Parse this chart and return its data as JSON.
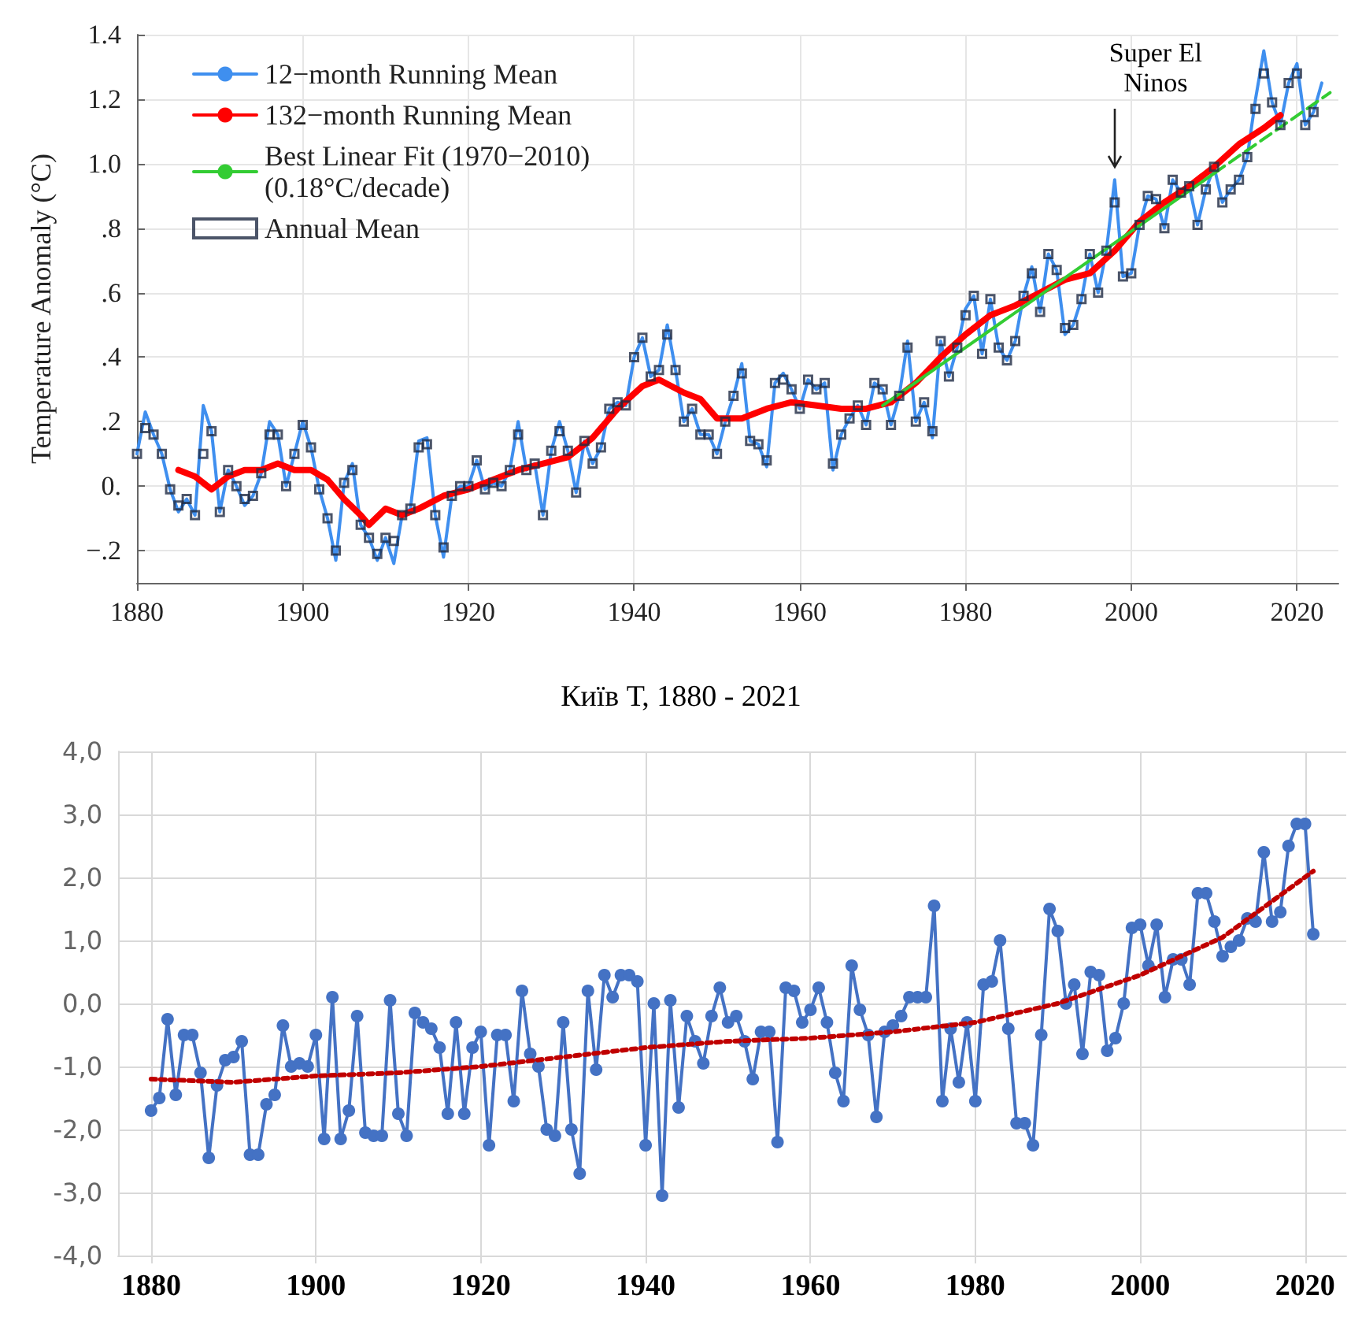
{
  "chart_data": [
    {
      "type": "line",
      "ylabel": "Temperature Anomaly (°C)",
      "xlim": [
        1880,
        2025
      ],
      "xticks": [
        1880,
        1900,
        1920,
        1940,
        1960,
        1980,
        2000,
        2020
      ],
      "ylim": [
        -0.3,
        1.4
      ],
      "yticks": [
        {
          "value": -0.2,
          "label": "−.2"
        },
        {
          "value": 0,
          "label": "0."
        },
        {
          "value": 0.2,
          "label": ".2"
        },
        {
          "value": 0.4,
          "label": ".4"
        },
        {
          "value": 0.6,
          "label": ".6"
        },
        {
          "value": 0.8,
          "label": ".8"
        },
        {
          "value": 1.0,
          "label": "1.0"
        },
        1.2,
        1.4
      ],
      "grid": true,
      "legend": "top left",
      "annotations": [
        {
          "text": "Super El Ninos",
          "x": 1998,
          "y": 0.95
        }
      ],
      "series": [
        {
          "name": "12−month Running Mean",
          "type": "line",
          "color": "#3f8fef",
          "marker": "none",
          "line_style": "solid",
          "x": [
            1880,
            1881,
            1882,
            1883,
            1884,
            1885,
            1886,
            1887,
            1888,
            1889,
            1890,
            1891,
            1892,
            1893,
            1894,
            1895,
            1896,
            1897,
            1898,
            1899,
            1900,
            1901,
            1902,
            1903,
            1904,
            1905,
            1906,
            1907,
            1908,
            1909,
            1910,
            1911,
            1912,
            1913,
            1914,
            1915,
            1916,
            1917,
            1918,
            1919,
            1920,
            1921,
            1922,
            1923,
            1924,
            1925,
            1926,
            1927,
            1928,
            1929,
            1930,
            1931,
            1932,
            1933,
            1934,
            1935,
            1936,
            1937,
            1938,
            1939,
            1940,
            1941,
            1942,
            1943,
            1944,
            1945,
            1946,
            1947,
            1948,
            1949,
            1950,
            1951,
            1952,
            1953,
            1954,
            1955,
            1956,
            1957,
            1958,
            1959,
            1960,
            1961,
            1962,
            1963,
            1964,
            1965,
            1966,
            1967,
            1968,
            1969,
            1970,
            1971,
            1972,
            1973,
            1974,
            1975,
            1976,
            1977,
            1978,
            1979,
            1980,
            1981,
            1982,
            1983,
            1984,
            1985,
            1986,
            1987,
            1988,
            1989,
            1990,
            1991,
            1992,
            1993,
            1994,
            1995,
            1996,
            1997,
            1998,
            1999,
            2000,
            2001,
            2002,
            2003,
            2004,
            2005,
            2006,
            2007,
            2008,
            2009,
            2010,
            2011,
            2012,
            2013,
            2014,
            2015,
            2016,
            2017,
            2018,
            2019,
            2020,
            2021,
            2022,
            2023
          ],
          "values": [
            0.1,
            0.23,
            0.16,
            0.1,
            -0.01,
            -0.08,
            -0.04,
            -0.09,
            0.25,
            0.17,
            -0.08,
            0.05,
            0.0,
            -0.06,
            -0.03,
            0.04,
            0.2,
            0.16,
            0.0,
            0.1,
            0.2,
            0.12,
            -0.01,
            -0.1,
            -0.23,
            0.01,
            0.07,
            -0.12,
            -0.16,
            -0.23,
            -0.16,
            -0.24,
            -0.09,
            -0.07,
            0.14,
            0.15,
            -0.09,
            -0.22,
            -0.03,
            0.0,
            0.0,
            0.08,
            -0.01,
            0.01,
            0.0,
            0.05,
            0.2,
            0.05,
            0.07,
            -0.09,
            0.11,
            0.2,
            0.11,
            -0.02,
            0.14,
            0.07,
            0.12,
            0.24,
            0.26,
            0.25,
            0.4,
            0.46,
            0.34,
            0.36,
            0.5,
            0.36,
            0.2,
            0.24,
            0.16,
            0.16,
            0.1,
            0.2,
            0.28,
            0.38,
            0.14,
            0.13,
            0.06,
            0.32,
            0.35,
            0.3,
            0.24,
            0.33,
            0.3,
            0.32,
            0.05,
            0.16,
            0.21,
            0.25,
            0.19,
            0.32,
            0.3,
            0.19,
            0.28,
            0.45,
            0.2,
            0.26,
            0.15,
            0.45,
            0.34,
            0.43,
            0.55,
            0.59,
            0.41,
            0.58,
            0.43,
            0.39,
            0.45,
            0.59,
            0.68,
            0.54,
            0.72,
            0.67,
            0.47,
            0.5,
            0.58,
            0.72,
            0.6,
            0.73,
            0.95,
            0.65,
            0.66,
            0.81,
            0.9,
            0.89,
            0.8,
            0.95,
            0.91,
            0.93,
            0.81,
            0.92,
            0.99,
            0.88,
            0.92,
            0.95,
            1.02,
            1.2,
            1.35,
            1.19,
            1.12,
            1.25,
            1.31,
            1.12,
            1.16,
            1.25
          ]
        },
        {
          "name": "132−month Running Mean",
          "type": "line",
          "color": "#ff0000",
          "marker": "none",
          "line_style": "solid",
          "x": [
            1885,
            1887,
            1889,
            1891,
            1893,
            1895,
            1897,
            1899,
            1901,
            1903,
            1905,
            1907,
            1908,
            1910,
            1912,
            1914,
            1917,
            1920,
            1923,
            1926,
            1929,
            1932,
            1935,
            1938,
            1941,
            1943,
            1946,
            1948,
            1950,
            1953,
            1956,
            1959,
            1962,
            1965,
            1968,
            1971,
            1974,
            1977,
            1980,
            1983,
            1986,
            1989,
            1992,
            1995,
            1998,
            2001,
            2004,
            2007,
            2010,
            2013,
            2016,
            2018
          ],
          "values": [
            0.05,
            0.03,
            -0.01,
            0.03,
            0.05,
            0.05,
            0.07,
            0.05,
            0.05,
            0.02,
            -0.04,
            -0.09,
            -0.12,
            -0.07,
            -0.09,
            -0.07,
            -0.03,
            -0.01,
            0.02,
            0.05,
            0.07,
            0.09,
            0.15,
            0.24,
            0.31,
            0.33,
            0.29,
            0.27,
            0.21,
            0.21,
            0.24,
            0.26,
            0.25,
            0.24,
            0.24,
            0.26,
            0.32,
            0.4,
            0.47,
            0.53,
            0.56,
            0.6,
            0.64,
            0.66,
            0.73,
            0.82,
            0.88,
            0.93,
            0.99,
            1.06,
            1.11,
            1.15
          ]
        },
        {
          "name": "Best Linear Fit (1970−2010) (0.18°C/decade)",
          "type": "line",
          "color": "#33cc33",
          "marker": "none",
          "line_style": "solid",
          "x": [
            1970,
            2010
          ],
          "values": [
            0.25,
            0.97
          ]
        },
        {
          "type": "line",
          "color": "#33cc33",
          "marker": "none",
          "line_style": "dashed",
          "x": [
            2010,
            2024
          ],
          "values": [
            0.97,
            1.22
          ]
        },
        {
          "name": "Annual Mean",
          "type": "scatter",
          "color": "#1f2a44",
          "marker": "square",
          "x": [
            1880,
            1881,
            1882,
            1883,
            1884,
            1885,
            1886,
            1887,
            1888,
            1889,
            1890,
            1891,
            1892,
            1893,
            1894,
            1895,
            1896,
            1897,
            1898,
            1899,
            1900,
            1901,
            1902,
            1903,
            1904,
            1905,
            1906,
            1907,
            1908,
            1909,
            1910,
            1911,
            1912,
            1913,
            1914,
            1915,
            1916,
            1917,
            1918,
            1919,
            1920,
            1921,
            1922,
            1923,
            1924,
            1925,
            1926,
            1927,
            1928,
            1929,
            1930,
            1931,
            1932,
            1933,
            1934,
            1935,
            1936,
            1937,
            1938,
            1939,
            1940,
            1941,
            1942,
            1943,
            1944,
            1945,
            1946,
            1947,
            1948,
            1949,
            1950,
            1951,
            1952,
            1953,
            1954,
            1955,
            1956,
            1957,
            1958,
            1959,
            1960,
            1961,
            1962,
            1963,
            1964,
            1965,
            1966,
            1967,
            1968,
            1969,
            1970,
            1971,
            1972,
            1973,
            1974,
            1975,
            1976,
            1977,
            1978,
            1979,
            1980,
            1981,
            1982,
            1983,
            1984,
            1985,
            1986,
            1987,
            1988,
            1989,
            1990,
            1991,
            1992,
            1993,
            1994,
            1995,
            1996,
            1997,
            1998,
            1999,
            2000,
            2001,
            2002,
            2003,
            2004,
            2005,
            2006,
            2007,
            2008,
            2009,
            2010,
            2011,
            2012,
            2013,
            2014,
            2015,
            2016,
            2017,
            2018,
            2019,
            2020,
            2021,
            2022
          ],
          "values": [
            0.1,
            0.18,
            0.16,
            0.1,
            -0.01,
            -0.06,
            -0.04,
            -0.09,
            0.1,
            0.17,
            -0.08,
            0.05,
            0.0,
            -0.04,
            -0.03,
            0.04,
            0.16,
            0.16,
            0.0,
            0.1,
            0.19,
            0.12,
            -0.01,
            -0.1,
            -0.2,
            0.01,
            0.05,
            -0.12,
            -0.16,
            -0.21,
            -0.16,
            -0.17,
            -0.09,
            -0.07,
            0.12,
            0.13,
            -0.09,
            -0.19,
            -0.03,
            0.0,
            0.0,
            0.08,
            -0.01,
            0.01,
            0.0,
            0.05,
            0.16,
            0.05,
            0.07,
            -0.09,
            0.11,
            0.17,
            0.11,
            -0.02,
            0.14,
            0.07,
            0.12,
            0.24,
            0.26,
            0.25,
            0.4,
            0.46,
            0.34,
            0.36,
            0.47,
            0.36,
            0.2,
            0.24,
            0.16,
            0.16,
            0.1,
            0.2,
            0.28,
            0.35,
            0.14,
            0.13,
            0.08,
            0.32,
            0.33,
            0.3,
            0.24,
            0.33,
            0.3,
            0.32,
            0.07,
            0.16,
            0.21,
            0.25,
            0.19,
            0.32,
            0.3,
            0.19,
            0.28,
            0.43,
            0.2,
            0.26,
            0.17,
            0.45,
            0.34,
            0.43,
            0.53,
            0.59,
            0.41,
            0.58,
            0.43,
            0.39,
            0.45,
            0.59,
            0.66,
            0.54,
            0.72,
            0.67,
            0.49,
            0.5,
            0.58,
            0.72,
            0.6,
            0.73,
            0.88,
            0.65,
            0.66,
            0.81,
            0.9,
            0.89,
            0.8,
            0.95,
            0.91,
            0.93,
            0.81,
            0.92,
            0.99,
            0.88,
            0.92,
            0.95,
            1.02,
            1.17,
            1.28,
            1.19,
            1.12,
            1.25,
            1.28,
            1.12,
            1.16
          ]
        }
      ]
    },
    {
      "type": "line",
      "title": "Київ Т, 1880 - 2021",
      "xlim": [
        1876,
        2025
      ],
      "xticks": [
        1880,
        1900,
        1920,
        1940,
        1960,
        1980,
        2000,
        2020
      ],
      "ylim": [
        -4,
        4
      ],
      "yticks": [
        {
          "value": -4,
          "label": "-4,0"
        },
        {
          "value": -3,
          "label": "-3,0"
        },
        {
          "value": -2,
          "label": "-2,0"
        },
        {
          "value": -1,
          "label": "-1,0"
        },
        {
          "value": 0,
          "label": "0,0"
        },
        {
          "value": 1,
          "label": "1,0"
        },
        {
          "value": 2,
          "label": "2,0"
        },
        {
          "value": 3,
          "label": "3,0"
        },
        {
          "value": 4,
          "label": "4,0"
        }
      ],
      "grid": true,
      "series": [
        {
          "type": "line",
          "color": "#4472c4",
          "marker": "circle",
          "line_style": "solid",
          "x": [
            1880,
            1881,
            1882,
            1883,
            1884,
            1885,
            1886,
            1887,
            1888,
            1889,
            1890,
            1891,
            1892,
            1893,
            1894,
            1895,
            1896,
            1897,
            1898,
            1899,
            1900,
            1901,
            1902,
            1903,
            1904,
            1905,
            1906,
            1907,
            1908,
            1909,
            1910,
            1911,
            1912,
            1913,
            1914,
            1915,
            1916,
            1917,
            1918,
            1919,
            1920,
            1921,
            1922,
            1923,
            1924,
            1925,
            1926,
            1927,
            1928,
            1929,
            1930,
            1931,
            1932,
            1933,
            1934,
            1935,
            1936,
            1937,
            1938,
            1939,
            1940,
            1941,
            1942,
            1943,
            1944,
            1945,
            1946,
            1947,
            1948,
            1949,
            1950,
            1951,
            1952,
            1953,
            1954,
            1955,
            1956,
            1957,
            1958,
            1959,
            1960,
            1961,
            1962,
            1963,
            1964,
            1965,
            1966,
            1967,
            1968,
            1969,
            1970,
            1971,
            1972,
            1973,
            1974,
            1975,
            1976,
            1977,
            1978,
            1979,
            1980,
            1981,
            1982,
            1983,
            1984,
            1985,
            1986,
            1987,
            1988,
            1989,
            1990,
            1991,
            1992,
            1993,
            1994,
            1995,
            1996,
            1997,
            1998,
            1999,
            2000,
            2001,
            2002,
            2003,
            2004,
            2005,
            2006,
            2007,
            2008,
            2009,
            2010,
            2011,
            2012,
            2013,
            2014,
            2015,
            2016,
            2017,
            2018,
            2019,
            2020,
            2021
          ],
          "values": [
            -1.7,
            -1.5,
            -0.25,
            -1.45,
            -0.5,
            -0.5,
            -1.1,
            -2.45,
            -1.3,
            -0.9,
            -0.85,
            -0.6,
            -2.4,
            -2.4,
            -1.6,
            -1.45,
            -0.35,
            -1.0,
            -0.95,
            -1.0,
            -0.5,
            -2.15,
            0.1,
            -2.15,
            -1.7,
            -0.2,
            -2.05,
            -2.1,
            -2.1,
            0.05,
            -1.75,
            -2.1,
            -0.15,
            -0.3,
            -0.4,
            -0.7,
            -1.75,
            -0.3,
            -1.75,
            -0.7,
            -0.45,
            -2.25,
            -0.5,
            -0.5,
            -1.55,
            0.2,
            -0.8,
            -1.0,
            -2.0,
            -2.1,
            -0.3,
            -2.0,
            -2.7,
            0.2,
            -1.05,
            0.45,
            0.1,
            0.45,
            0.45,
            0.35,
            -2.25,
            0.0,
            -3.05,
            0.05,
            -1.65,
            -0.2,
            -0.6,
            -0.95,
            -0.2,
            0.25,
            -0.3,
            -0.2,
            -0.6,
            -1.2,
            -0.45,
            -0.45,
            -2.2,
            0.25,
            0.2,
            -0.3,
            -0.1,
            0.25,
            -0.3,
            -1.1,
            -1.55,
            0.6,
            -0.1,
            -0.5,
            -1.8,
            -0.45,
            -0.35,
            -0.2,
            0.1,
            0.1,
            0.1,
            1.55,
            -1.55,
            -0.4,
            -1.25,
            -0.3,
            -1.55,
            0.3,
            0.35,
            1.0,
            -0.4,
            -1.9,
            -1.9,
            -2.25,
            -0.5,
            1.5,
            1.15,
            0.0,
            0.3,
            -0.8,
            0.5,
            0.45,
            -0.75,
            -0.55,
            0.0,
            1.2,
            1.25,
            0.6,
            1.25,
            0.1,
            0.7,
            0.7,
            0.3,
            1.75,
            1.75,
            1.3,
            0.75,
            0.9,
            1.0,
            1.35,
            1.3,
            2.4,
            1.3,
            1.45,
            2.5,
            2.85,
            2.85,
            1.1
          ]
        },
        {
          "type": "line",
          "color": "#c00000",
          "marker": "none",
          "line_style": "dotted",
          "x": [
            1880,
            1890,
            1900,
            1910,
            1920,
            1930,
            1940,
            1950,
            1960,
            1970,
            1980,
            1990,
            2000,
            2010,
            2021
          ],
          "values": [
            -1.2,
            -1.25,
            -1.15,
            -1.1,
            -1.0,
            -0.85,
            -0.7,
            -0.6,
            -0.55,
            -0.45,
            -0.3,
            0.0,
            0.45,
            1.05,
            2.1
          ]
        }
      ]
    }
  ]
}
